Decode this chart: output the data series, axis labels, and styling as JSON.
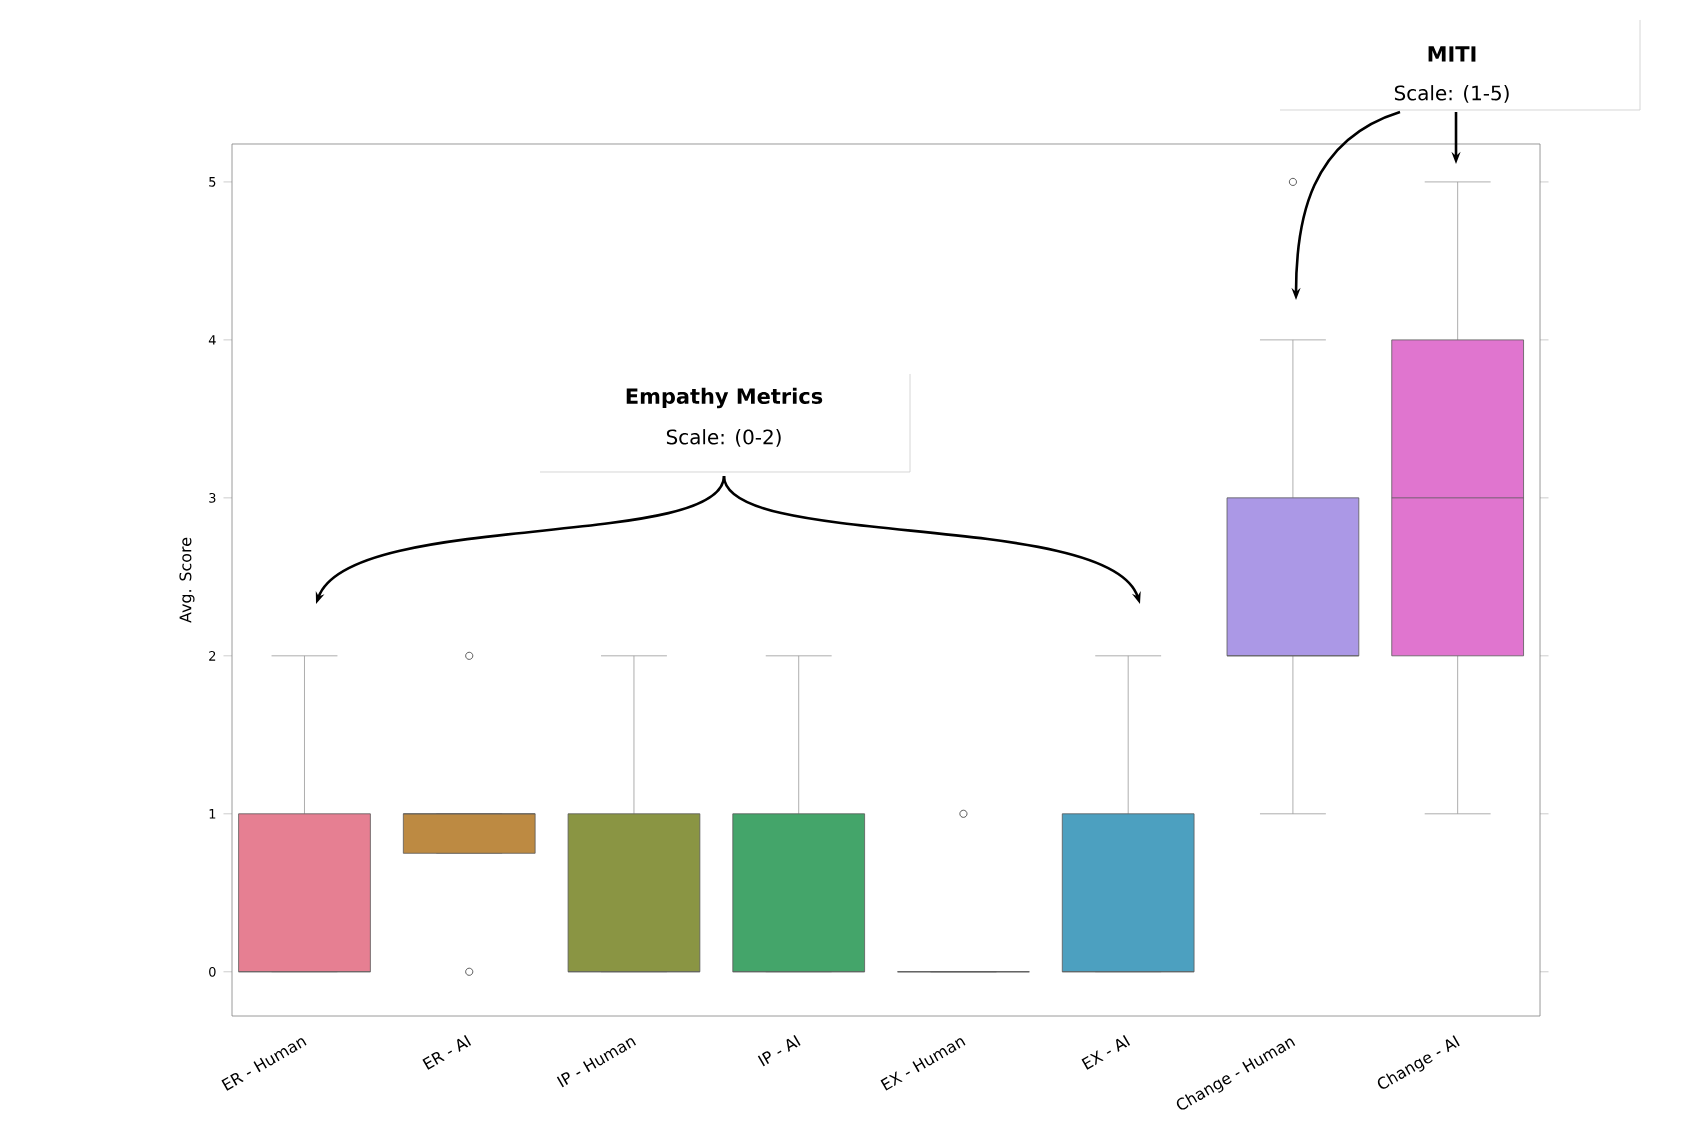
{
  "chart_data": {
    "type": "box",
    "ylabel": "Avg. Score",
    "categories": [
      "ER - Human",
      "ER - AI",
      "IP - Human",
      "IP - AI",
      "EX - Human",
      "EX - AI",
      "Change - Human",
      "Change - AI"
    ],
    "colors": [
      "#e67f92",
      "#bd8a42",
      "#8a9543",
      "#44a56a",
      "#595959",
      "#4ca0c0",
      "#ab98e6",
      "#e075cf"
    ],
    "boxes": [
      {
        "low": 0,
        "q1": 0,
        "median": 0,
        "q3": 1,
        "high": 2
      },
      {
        "low": 0.75,
        "q1": 0.75,
        "median": 1,
        "q3": 1,
        "high": 1,
        "outliers": [
          0,
          2
        ]
      },
      {
        "low": 0,
        "q1": 0,
        "median": 0,
        "q3": 1,
        "high": 2
      },
      {
        "low": 0,
        "q1": 0,
        "median": 0,
        "q3": 1,
        "high": 2
      },
      {
        "low": 0,
        "q1": 0,
        "median": 0,
        "q3": 0,
        "high": 0,
        "outliers": [
          1
        ]
      },
      {
        "low": 0,
        "q1": 0,
        "median": 0,
        "q3": 1,
        "high": 2
      },
      {
        "low": 1,
        "q1": 2,
        "median": 2,
        "q3": 3,
        "high": 4,
        "outliers": [
          5
        ]
      },
      {
        "low": 1,
        "q1": 2,
        "median": 3,
        "q3": 4,
        "high": 5
      }
    ],
    "ylim": [
      -0.28,
      5.24
    ],
    "yticks": [
      0,
      1,
      2,
      3,
      4,
      5
    ],
    "annotations": [
      "**Empathy Metrics**",
      "Scale: (0-2)",
      "**MITI**",
      "Scale: (1-5)"
    ]
  }
}
